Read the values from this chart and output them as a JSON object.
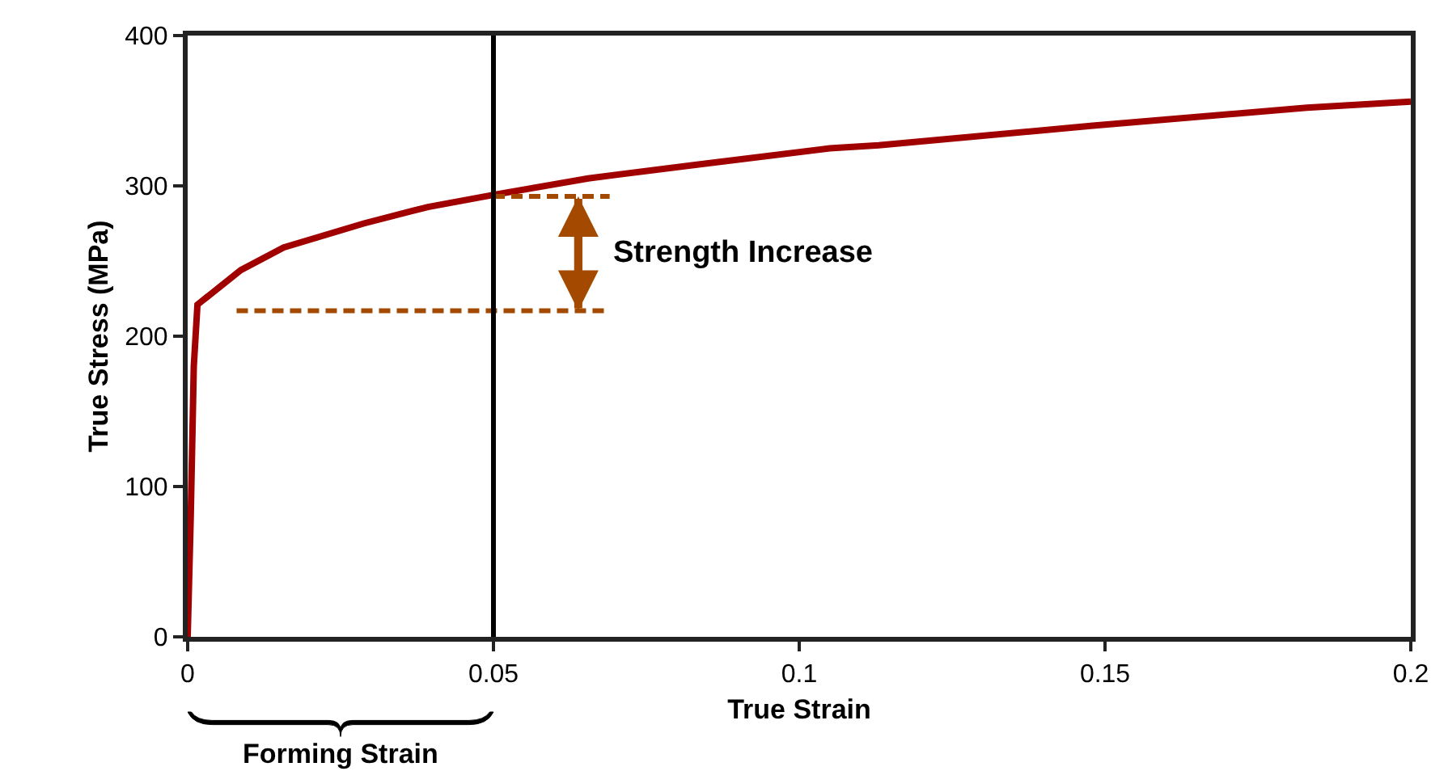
{
  "chart_data": {
    "type": "line",
    "xlabel": "True Strain",
    "ylabel": "True Stress (MPa)",
    "xlim": [
      0,
      0.2
    ],
    "xticks": [
      0,
      0.05,
      0.1,
      0.15,
      0.2
    ],
    "ylim": [
      0,
      400
    ],
    "yticks": [
      0,
      100,
      200,
      300,
      400
    ],
    "marker": "none",
    "series": [
      {
        "color": "#a00000",
        "line_style": "solid",
        "x": [
          0,
          0.0005,
          0.001,
          0.0016,
          0.0087,
          0.0157,
          0.0288,
          0.0393,
          0.05,
          0.0655,
          0.083,
          0.105,
          0.113,
          0.148,
          0.183,
          0.2
        ],
        "values": [
          0,
          80,
          180,
          221,
          244,
          259,
          275,
          286,
          294,
          305,
          314,
          325,
          327,
          340,
          352,
          356
        ]
      },
      {
        "color": "#a34a00",
        "line_style": "dashed",
        "x": [
          0.05,
          0.069
        ],
        "values": [
          293,
          293
        ]
      },
      {
        "color": "#a34a00",
        "line_style": "dashed",
        "x": [
          0.008,
          0.069
        ],
        "values": [
          217,
          217
        ]
      }
    ],
    "ref_lines": [
      {
        "axis": "x",
        "value": 0.05,
        "color": "#000000",
        "line_style": "solid"
      }
    ],
    "annotations": [
      "Strength Increase",
      "Forming Strain"
    ]
  }
}
